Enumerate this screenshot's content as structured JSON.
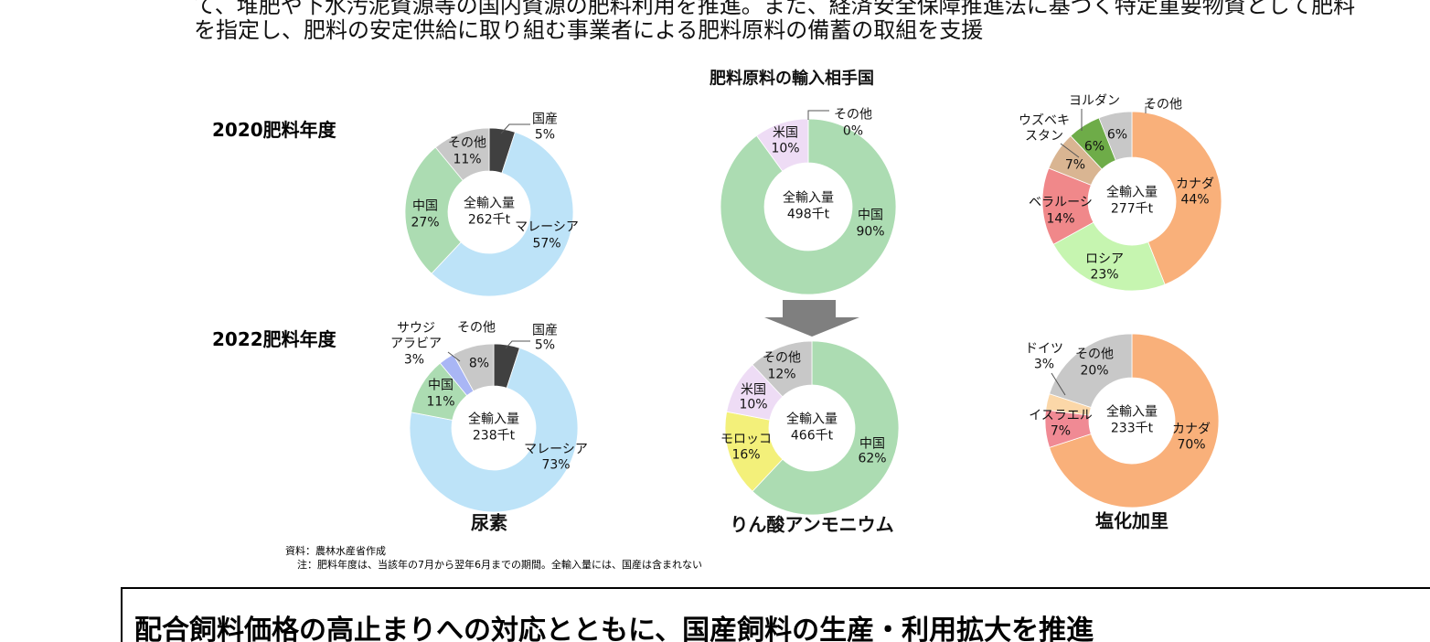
{
  "body_text": [
    "て、堆肥や下水汚泥資源等の国内資源の肥料利用を推進。また、経済安全保障推進法に基づく特定重要物資として肥料",
    "を指定し、肥料の安定供給に取り組む事業者による肥料原料の備蓄の取組を支援"
  ],
  "figure_title": "肥料原料の輸入相手国",
  "row_labels": [
    "2020肥料年度",
    "2022肥料年度"
  ],
  "column_labels": [
    "尿素",
    "りん酸アンモニウム",
    "塩化加里"
  ],
  "chart_data": [
    {
      "type": "donut",
      "center_label": "全輸入量",
      "center_value": "262千t",
      "categories": [
        "国産",
        "マレーシア",
        "中国",
        "その他"
      ],
      "values": [
        5,
        57,
        27,
        11
      ],
      "value_labels": [
        "5%",
        "57%",
        "27%",
        "11%"
      ],
      "colors": [
        "#404040",
        "#bde3f8",
        "#acdcb2",
        "#c8c8c8"
      ]
    },
    {
      "type": "donut",
      "center_label": "全輸入量",
      "center_value": "498千t",
      "categories": [
        "中国",
        "米国",
        "その他"
      ],
      "values": [
        90,
        10,
        0
      ],
      "value_labels": [
        "90%",
        "10%",
        "0%"
      ],
      "colors": [
        "#acdcb2",
        "#eedcf5",
        "#c8c8c8"
      ]
    },
    {
      "type": "donut",
      "center_label": "全輸入量",
      "center_value": "277千t",
      "categories": [
        "カナダ",
        "ロシア",
        "ベラルーシ",
        "ウズベキ\nスタン",
        "ヨルダン",
        "その他"
      ],
      "values": [
        44,
        23,
        14,
        7,
        6,
        6
      ],
      "value_labels": [
        "44%",
        "23%",
        "14%",
        "7%",
        "6%",
        "6%"
      ],
      "colors": [
        "#f9b07a",
        "#c6f5b0",
        "#f0888a",
        "#d9b592",
        "#6eac48",
        "#c8c8c8"
      ]
    },
    {
      "type": "donut",
      "center_label": "全輸入量",
      "center_value": "238千t",
      "categories": [
        "国産",
        "マレーシア",
        "中国",
        "サウジ\nアラビア",
        "その他"
      ],
      "values": [
        5,
        73,
        11,
        3,
        8
      ],
      "value_labels": [
        "5%",
        "73%",
        "11%",
        "3%",
        "8%"
      ],
      "colors": [
        "#404040",
        "#bde3f8",
        "#acdcb2",
        "#a9b6f5",
        "#c8c8c8"
      ]
    },
    {
      "type": "donut",
      "center_label": "全輸入量",
      "center_value": "466千t",
      "categories": [
        "中国",
        "モロッコ",
        "米国",
        "その他"
      ],
      "values": [
        62,
        16,
        10,
        12
      ],
      "value_labels": [
        "62%",
        "16%",
        "10%",
        "12%"
      ],
      "colors": [
        "#acdcb2",
        "#f3f07a",
        "#eedcf5",
        "#c8c8c8"
      ]
    },
    {
      "type": "donut",
      "center_label": "全輸入量",
      "center_value": "233千t",
      "categories": [
        "カナダ",
        "イスラエル",
        "ドイツ",
        "その他"
      ],
      "values": [
        70,
        7,
        3,
        20
      ],
      "value_labels": [
        "70%",
        "7%",
        "3%",
        "20%"
      ],
      "colors": [
        "#f9b07a",
        "#f08a94",
        "#fbd7a8",
        "#c8c8c8"
      ]
    }
  ],
  "notes": [
    "資料：農林水産省作成",
    "注：肥料年度は、当該年の7月から翌年6月までの期間。全輸入量には、国産は含まれない"
  ],
  "next_section": {
    "heading": "配合飼料価格の高止まりへの対応とともに、国産飼料の生産・利用拡大を推進"
  }
}
